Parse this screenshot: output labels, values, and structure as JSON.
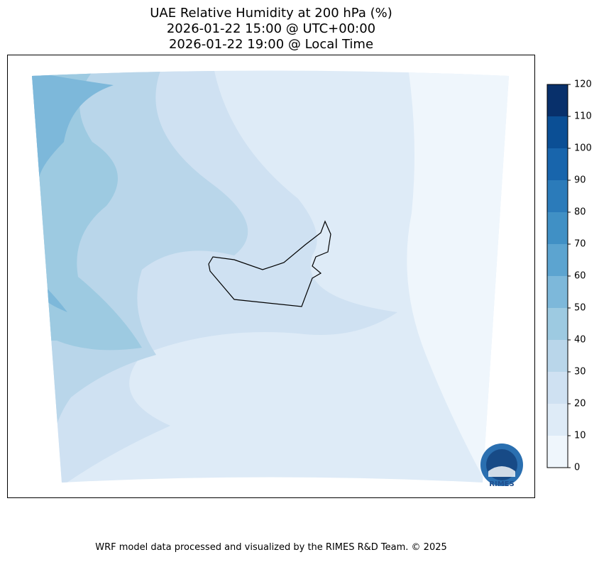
{
  "title": [
    "UAE Relative Humidity at 200 hPa (%)",
    "2026-01-22 15:00 @ UTC+00:00",
    "2026-01-22 19:00 @ Local Time"
  ],
  "colorbar": {
    "ticks": [
      0,
      10,
      20,
      30,
      40,
      50,
      60,
      70,
      80,
      90,
      100,
      110,
      120
    ],
    "colors": [
      "#eff6fc",
      "#deebf7",
      "#cfe1f2",
      "#b9d6ea",
      "#9dcae1",
      "#7db8da",
      "#5ca4d0",
      "#4090c5",
      "#2b7bba",
      "#1865ac",
      "#0b4f95",
      "#08306b"
    ]
  },
  "logo": "RIMES",
  "footer": "WRF model data processed and visualized by the RIMES R&D Team. © 2025"
}
